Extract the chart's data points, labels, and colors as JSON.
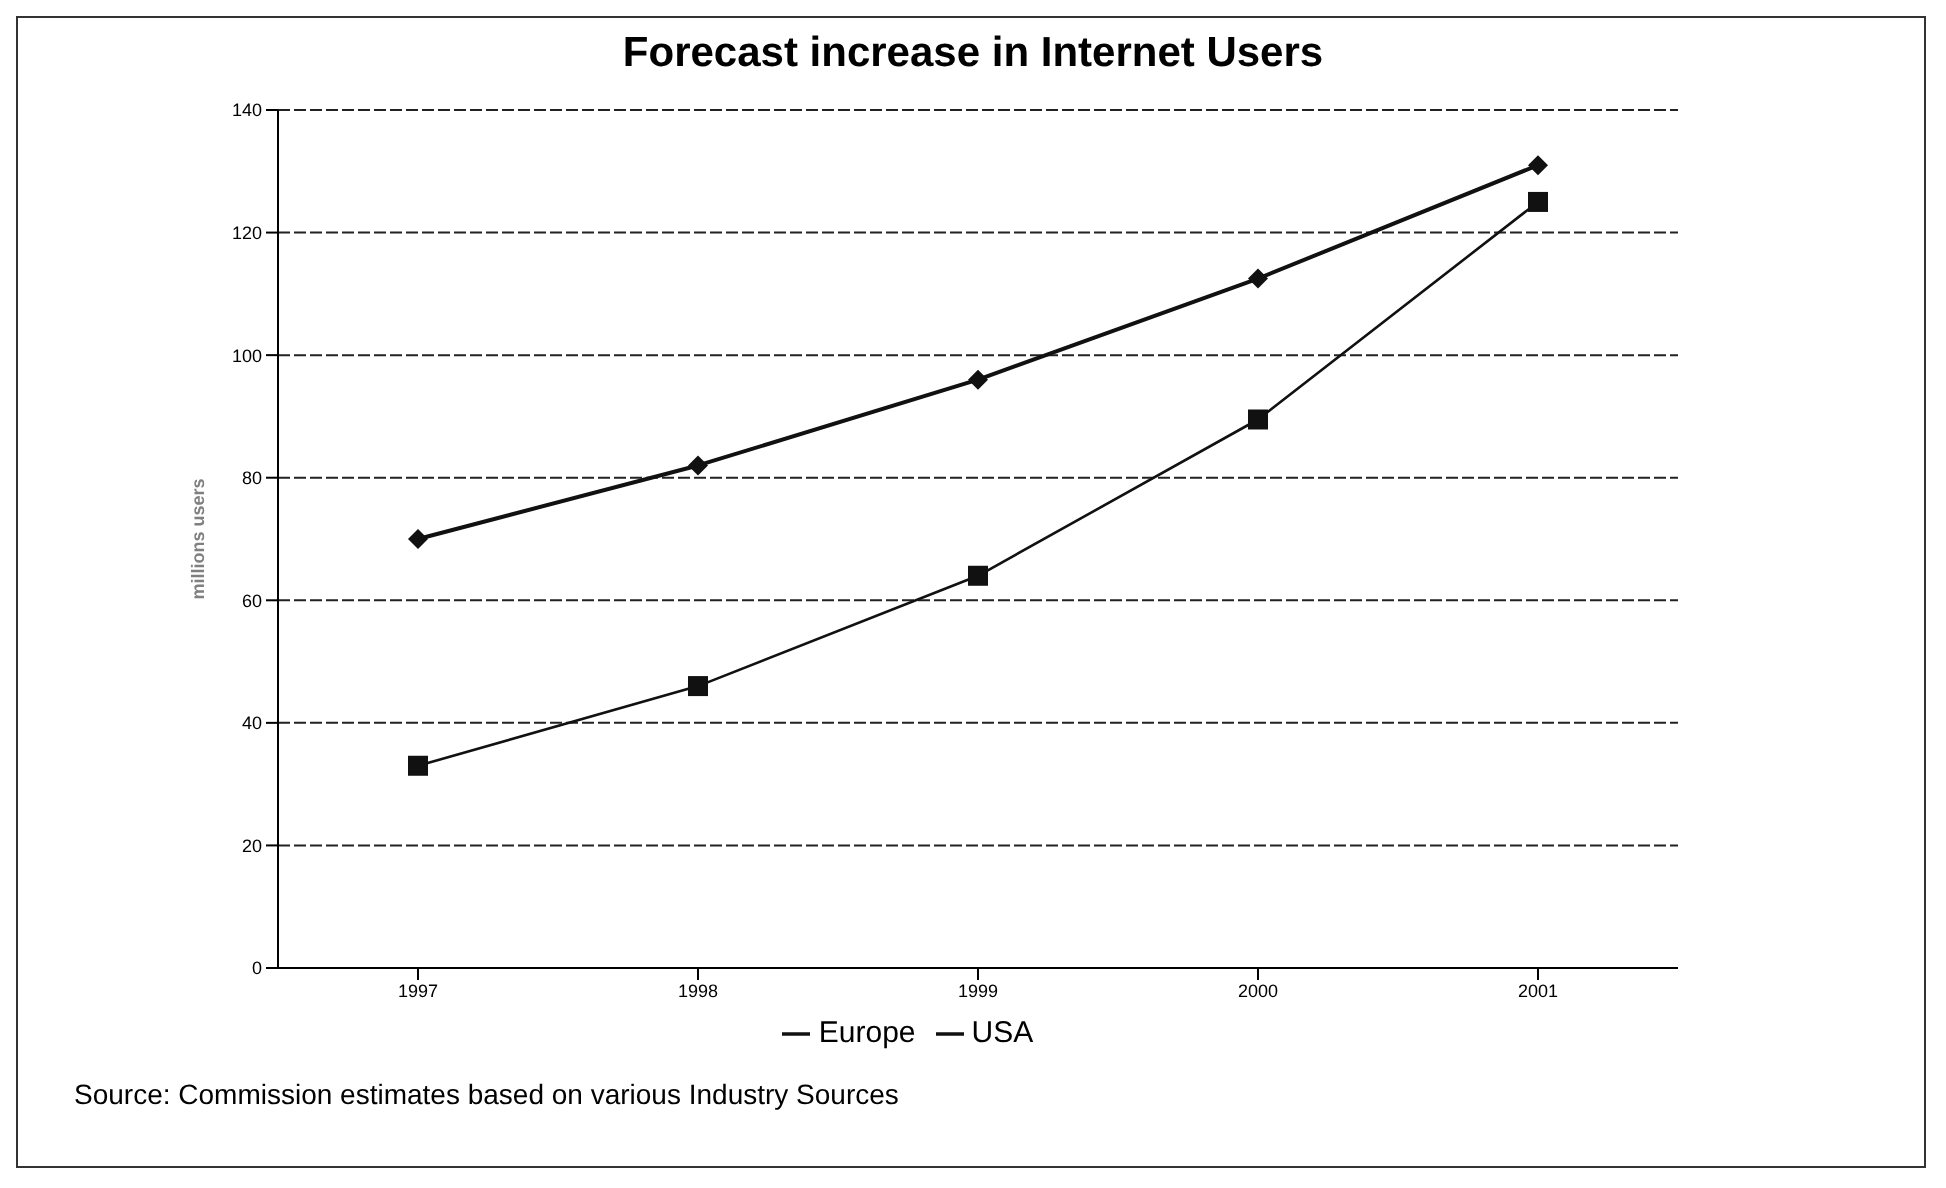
{
  "chart_data": {
    "type": "line",
    "title": "Forecast increase in Internet Users",
    "ylabel": "millions users",
    "categories": [
      "1997",
      "1998",
      "1999",
      "2000",
      "2001"
    ],
    "series": [
      {
        "name": "USA",
        "color": "#111111",
        "marker": "diamond",
        "values": [
          70,
          82,
          96,
          112.5,
          131
        ]
      },
      {
        "name": "Europe",
        "color": "#111111",
        "marker": "square",
        "values": [
          33,
          46,
          64,
          89.5,
          125
        ]
      }
    ],
    "ylim": [
      0,
      140
    ],
    "yticks": [
      0,
      20,
      40,
      60,
      80,
      100,
      120,
      140
    ],
    "grid": "y",
    "legend": "bottom",
    "annotations": [
      "Source: Commission estimates based on various Industry Sources"
    ]
  }
}
